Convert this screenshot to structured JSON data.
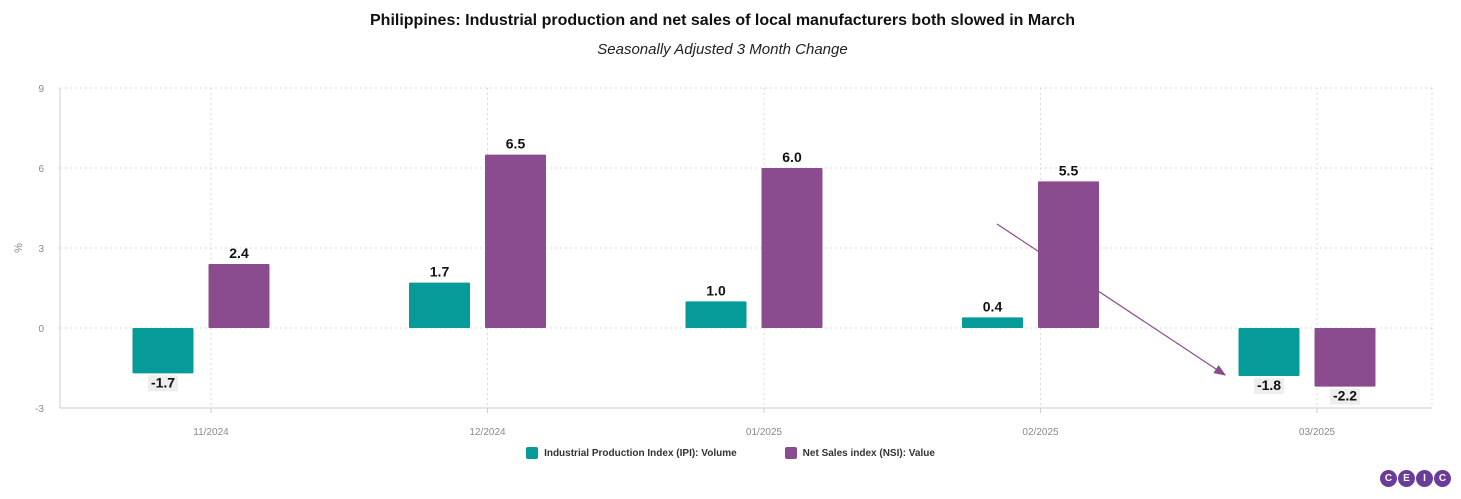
{
  "title": "Philippines: Industrial production and net sales of local manufacturers both slowed in March",
  "subtitle": "Seasonally Adjusted 3 Month Change",
  "logo_letters": [
    "C",
    "E",
    "I",
    "C"
  ],
  "colors": {
    "ipi": "#069b98",
    "nsi": "#8a4c8f",
    "arrow": "#8a4c8f",
    "grid": "#d9d9d9"
  },
  "chart_data": {
    "type": "bar",
    "title": "Philippines: Industrial production and net sales of local manufacturers both slowed in March",
    "subtitle": "Seasonally Adjusted 3 Month Change",
    "xlabel": "",
    "ylabel": "%",
    "ylim": [
      -3,
      9
    ],
    "yticks": [
      -3,
      0,
      3,
      6,
      9
    ],
    "grid": true,
    "legend_position": "bottom",
    "categories": [
      "11/2024",
      "12/2024",
      "01/2025",
      "02/2025",
      "03/2025"
    ],
    "series": [
      {
        "name": "Industrial Production Index (IPI): Volume",
        "values": [
          -1.7,
          1.7,
          1.0,
          0.4,
          -1.8
        ]
      },
      {
        "name": "Net Sales index (NSI): Value",
        "values": [
          2.4,
          6.5,
          6.0,
          5.5,
          -2.2
        ]
      }
    ],
    "data_labels": [
      [
        "-1.7",
        "1.7",
        "1.0",
        "0.4",
        "-1.8"
      ],
      [
        "2.4",
        "6.5",
        "6.0",
        "5.5",
        "-2.2"
      ]
    ],
    "annotations": [
      {
        "type": "arrow",
        "description": "arrow pointing down toward March 2025 IPI bar"
      }
    ]
  }
}
